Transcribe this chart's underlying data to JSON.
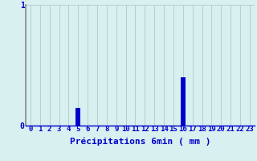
{
  "categories": [
    0,
    1,
    2,
    3,
    4,
    5,
    6,
    7,
    8,
    9,
    10,
    11,
    12,
    13,
    14,
    15,
    16,
    17,
    18,
    19,
    20,
    21,
    22,
    23
  ],
  "values": [
    0,
    0,
    0,
    0,
    0,
    0.15,
    0,
    0,
    0,
    0,
    0,
    0,
    0,
    0,
    0,
    0,
    0.4,
    0,
    0,
    0,
    0,
    0,
    0,
    0
  ],
  "bar_color": "#0000cc",
  "background_color": "#d8f0f0",
  "grid_color": "#b8cece",
  "left_spine_color": "#888888",
  "bottom_spine_color": "#0000cc",
  "xlabel": "Précipitations 6min ( mm )",
  "xlabel_color": "#0000cc",
  "tick_color": "#0000cc",
  "ylim": [
    0,
    1
  ],
  "xlim": [
    -0.5,
    23.5
  ],
  "yticks": [
    0,
    1
  ],
  "xticks": [
    0,
    1,
    2,
    3,
    4,
    5,
    6,
    7,
    8,
    9,
    10,
    11,
    12,
    13,
    14,
    15,
    16,
    17,
    18,
    19,
    20,
    21,
    22,
    23
  ],
  "bar_width": 0.5,
  "xlabel_fontsize": 8,
  "tick_fontsize": 6.5,
  "ylabel_fontsize": 7
}
